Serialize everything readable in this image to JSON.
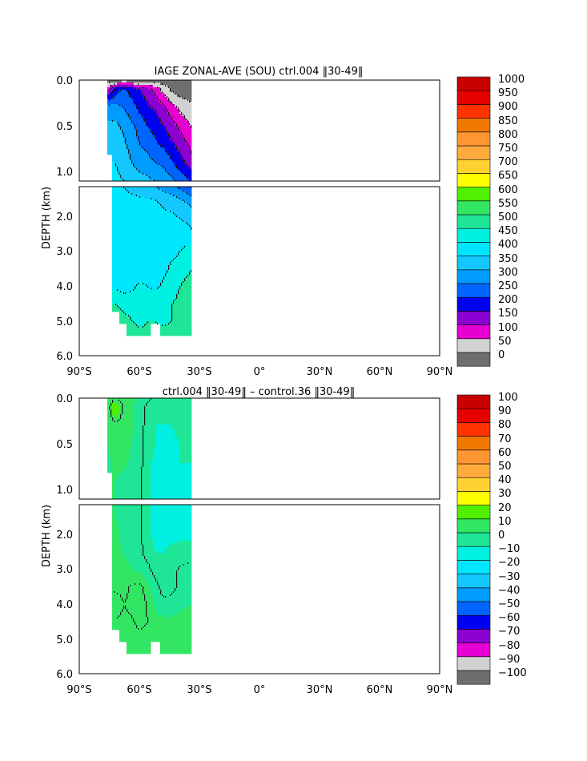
{
  "colors": {
    "palette": [
      "#6e6e6e",
      "#d2d2d2",
      "#e600d2",
      "#8c00d2",
      "#0000f0",
      "#0064ff",
      "#009bff",
      "#14c8ff",
      "#00e6ff",
      "#00f0e1",
      "#1ee696",
      "#32e664",
      "#50f000",
      "#ffff00",
      "#ffd232",
      "#ffaa3c",
      "#ff9632",
      "#f07800",
      "#ff3200",
      "#e60000",
      "#c80000"
    ]
  },
  "chart_data": [
    {
      "type": "heatmap",
      "title": "IAGE ZONAL-AVE (SOU) ctrl.004 ‖30-49‖",
      "xlabel": "",
      "ylabel": "DEPTH (km)",
      "x_ticks": [
        "90°S",
        "60°S",
        "30°S",
        "0°",
        "30°N",
        "60°N",
        "90°N"
      ],
      "xlim": [
        -90,
        90
      ],
      "y_ticks_upper": [
        "0.0",
        "0.5",
        "1.0"
      ],
      "y_ticks_lower": [
        "2.0",
        "3.0",
        "4.0",
        "5.0",
        "6.0"
      ],
      "ylim": [
        0,
        6
      ],
      "y_break_km": 1.1,
      "colorbar_levels": [
        "1000",
        "950",
        "900",
        "850",
        "800",
        "750",
        "700",
        "650",
        "600",
        "550",
        "500",
        "450",
        "400",
        "350",
        "300",
        "250",
        "200",
        "150",
        "100",
        "50",
        "0"
      ],
      "field": {
        "lat": [
          -76,
          -72,
          -68,
          -64,
          -60,
          -56,
          -52,
          -48,
          -44,
          -40,
          -36,
          -34
        ],
        "depth": [
          0,
          0.1,
          0.3,
          0.5,
          0.7,
          0.9,
          1.1,
          1.5,
          2,
          2.5,
          3,
          3.5,
          4,
          4.5,
          5,
          5.4
        ],
        "values": [
          [
            20,
            20,
            20,
            20,
            20,
            20,
            20,
            20,
            20,
            20,
            20,
            20
          ],
          [
            120,
            220,
            260,
            230,
            200,
            170,
            130,
            80,
            40,
            20,
            20,
            20
          ],
          [
            330,
            320,
            300,
            270,
            240,
            210,
            190,
            160,
            120,
            90,
            70,
            60
          ],
          [
            360,
            360,
            340,
            310,
            280,
            250,
            230,
            200,
            170,
            140,
            110,
            95
          ],
          [
            380,
            380,
            360,
            330,
            300,
            280,
            260,
            240,
            210,
            180,
            150,
            130
          ],
          [
            400,
            400,
            380,
            350,
            330,
            320,
            300,
            290,
            260,
            220,
            190,
            170
          ],
          [
            410,
            410,
            400,
            380,
            370,
            360,
            350,
            330,
            310,
            290,
            260,
            240
          ],
          [
            420,
            420,
            420,
            420,
            410,
            410,
            400,
            390,
            380,
            360,
            340,
            330
          ],
          [
            430,
            430,
            430,
            430,
            430,
            420,
            420,
            410,
            410,
            400,
            390,
            380
          ],
          [
            430,
            430,
            430,
            430,
            430,
            430,
            430,
            430,
            420,
            420,
            420,
            410
          ],
          [
            430,
            420,
            420,
            420,
            420,
            410,
            420,
            430,
            440,
            450,
            470,
            470
          ],
          [
            420,
            420,
            430,
            410,
            420,
            420,
            430,
            440,
            460,
            470,
            490,
            500
          ],
          [
            450,
            440,
            430,
            440,
            460,
            450,
            440,
            460,
            480,
            500,
            520,
            520
          ],
          [
            500,
            500,
            480,
            480,
            470,
            480,
            490,
            500,
            500,
            510,
            510,
            520
          ],
          [
            560,
            540,
            520,
            500,
            490,
            500,
            500,
            490,
            500,
            520,
            530,
            540
          ],
          [
            560,
            550,
            530,
            520,
            510,
            510,
            510,
            520,
            520,
            530,
            540,
            540
          ]
        ],
        "valid_depth_max_km": [
          0.8,
          4.7,
          5.1,
          5.4,
          5.4,
          5.4,
          5.1,
          5.4,
          5.4,
          5.4,
          5.4,
          5.4
        ],
        "contour_levels": [
          50,
          100,
          150,
          200,
          250,
          300,
          350,
          400,
          450,
          500,
          550
        ],
        "min": 0,
        "max": 1050
      }
    },
    {
      "type": "heatmap",
      "title": "ctrl.004 ‖30-49‖ – control.36 ‖30-49‖",
      "xlabel": "",
      "ylabel": "DEPTH (km)",
      "x_ticks": [
        "90°S",
        "60°S",
        "30°S",
        "0°",
        "30°N",
        "60°N",
        "90°N"
      ],
      "xlim": [
        -90,
        90
      ],
      "y_ticks_upper": [
        "0.0",
        "0.5",
        "1.0"
      ],
      "y_ticks_lower": [
        "2.0",
        "3.0",
        "4.0",
        "5.0",
        "6.0"
      ],
      "ylim": [
        0,
        6
      ],
      "y_break_km": 1.1,
      "colorbar_levels": [
        "100",
        "90",
        "80",
        "70",
        "60",
        "50",
        "40",
        "30",
        "20",
        "10",
        "0",
        "−10",
        "−20",
        "−30",
        "−40",
        "−50",
        "−60",
        "−70",
        "−80",
        "−90",
        "−100"
      ],
      "field": {
        "lat": [
          -76,
          -72,
          -68,
          -64,
          -60,
          -56,
          -52,
          -48,
          -44,
          -40,
          -36,
          -34
        ],
        "depth": [
          0,
          0.1,
          0.3,
          0.5,
          0.7,
          0.9,
          1.1,
          1.5,
          2,
          2.5,
          3,
          3.5,
          4,
          4.5,
          5,
          5.4
        ],
        "values": [
          [
            5,
            8,
            6,
            7,
            4,
            2,
            -2,
            -3,
            -4,
            -3,
            -2,
            0
          ],
          [
            4,
            25,
            8,
            6,
            3,
            -2,
            -4,
            -4,
            -5,
            -4,
            -3,
            -1
          ],
          [
            6,
            7,
            5,
            6,
            3,
            -3,
            -5,
            -5,
            -5,
            -4,
            -4,
            -3
          ],
          [
            5,
            6,
            7,
            5,
            2,
            -3,
            -5,
            -6,
            -6,
            -5,
            -5,
            -4
          ],
          [
            4,
            6,
            6,
            4,
            2,
            -4,
            -6,
            -6,
            -6,
            -5,
            -5,
            -5
          ],
          [
            5,
            5,
            4,
            4,
            1,
            -4,
            -6,
            -6,
            -6,
            -6,
            -6,
            -6
          ],
          [
            5,
            5,
            5,
            3,
            1,
            -4,
            -6,
            -6,
            -6,
            -6,
            -6,
            -6
          ],
          [
            5,
            5,
            4,
            3,
            1,
            -4,
            -6,
            -6,
            -6,
            -6,
            -6,
            -6
          ],
          [
            6,
            6,
            4,
            3,
            1,
            -4,
            -6,
            -6,
            -6,
            -6,
            -6,
            -6
          ],
          [
            7,
            6,
            5,
            4,
            2,
            -3,
            -5,
            -5,
            -4,
            -3,
            -3,
            -2
          ],
          [
            8,
            7,
            6,
            5,
            4,
            2,
            -3,
            -4,
            -2,
            1,
            2,
            2
          ],
          [
            10,
            8,
            8,
            11,
            12,
            6,
            2,
            -3,
            -2,
            2,
            4,
            4
          ],
          [
            12,
            15,
            10,
            12,
            14,
            9,
            4,
            2,
            3,
            4,
            5,
            5
          ],
          [
            8,
            9,
            8,
            9,
            12,
            10,
            7,
            6,
            6,
            6,
            6,
            6
          ],
          [
            6,
            6,
            6,
            7,
            8,
            7,
            6,
            6,
            6,
            6,
            6,
            6
          ],
          [
            5,
            5,
            5,
            6,
            6,
            6,
            5,
            5,
            5,
            5,
            5,
            5
          ]
        ],
        "valid_depth_max_km": [
          0.8,
          4.7,
          5.1,
          5.4,
          5.4,
          5.4,
          5.1,
          5.4,
          5.4,
          5.4,
          5.4,
          5.4
        ],
        "contour_levels": [
          0,
          10
        ],
        "min": -105,
        "max": 105
      }
    }
  ]
}
